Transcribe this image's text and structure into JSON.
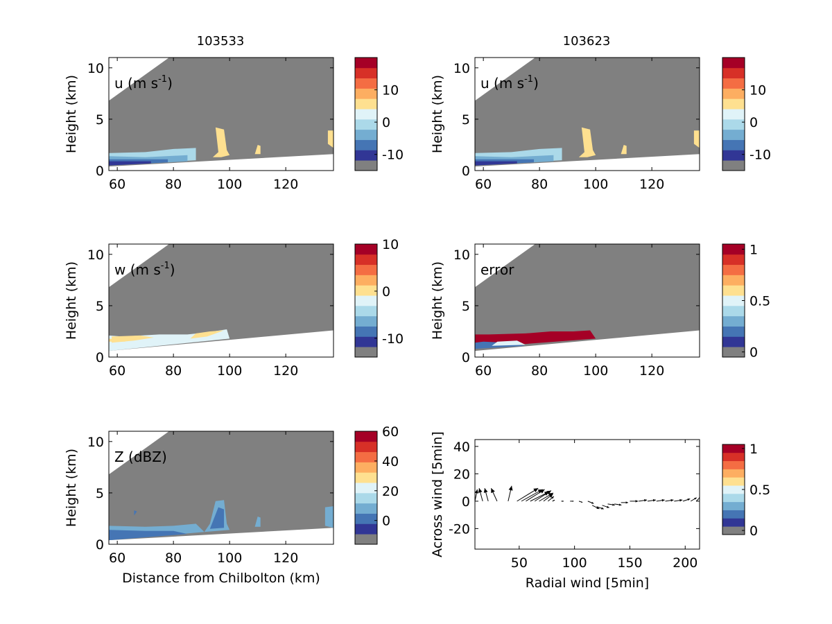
{
  "figure": {
    "titles": [
      "103533",
      "103623"
    ]
  },
  "colors": {
    "colormap": [
      "#808080",
      "#313695",
      "#4575b4",
      "#74add1",
      "#abd9e9",
      "#e0f3f8",
      "#fee090",
      "#fdae61",
      "#f46d43",
      "#d73027",
      "#a50026"
    ],
    "no_data_gray": "#808080",
    "axes_background": "#ffffff",
    "frame": "#000000"
  },
  "chart_data": [
    {
      "type": "heatmap",
      "panel": "top-left",
      "label": "u (m s-1)",
      "label_main": "u (m s",
      "label_sup": "-1",
      "label_close": ")",
      "ylabel": "Height (km)",
      "xlabel": "",
      "xlim": [
        57,
        137
      ],
      "ylim": [
        0,
        11
      ],
      "xticks": [
        "60",
        "80",
        "100",
        "120"
      ],
      "yticks": [
        "0",
        "5",
        "10"
      ],
      "colorbar_ticks": [
        "-10",
        "0",
        "10"
      ],
      "colorbar_range": [
        -15,
        20
      ]
    },
    {
      "type": "heatmap",
      "panel": "top-right",
      "label": "u (m s-1)",
      "label_main": "u (m s",
      "label_sup": "-1",
      "label_close": ")",
      "ylabel": "Height (km)",
      "xlabel": "",
      "xlim": [
        57,
        137
      ],
      "ylim": [
        0,
        11
      ],
      "xticks": [
        "60",
        "80",
        "100",
        "120"
      ],
      "yticks": [
        "0",
        "5",
        "10"
      ],
      "colorbar_ticks": [
        "-10",
        "0",
        "10"
      ],
      "colorbar_range": [
        -15,
        20
      ]
    },
    {
      "type": "heatmap",
      "panel": "middle-left",
      "label": "w (m s-1)",
      "label_main": "w (m s",
      "label_sup": "-1",
      "label_close": ")",
      "ylabel": "Height (km)",
      "xlabel": "",
      "xlim": [
        57,
        137
      ],
      "ylim": [
        0,
        11
      ],
      "xticks": [
        "60",
        "80",
        "100",
        "120"
      ],
      "yticks": [
        "0",
        "5",
        "10"
      ],
      "colorbar_ticks": [
        "-10",
        "0",
        "10"
      ],
      "colorbar_range": [
        -14,
        10
      ]
    },
    {
      "type": "heatmap",
      "panel": "middle-right",
      "label": "error",
      "label_main": "error",
      "label_sup": "",
      "label_close": "",
      "ylabel": "Height (km)",
      "xlabel": "",
      "xlim": [
        57,
        137
      ],
      "ylim": [
        0,
        11
      ],
      "xticks": [
        "60",
        "80",
        "100",
        "120"
      ],
      "yticks": [
        "0",
        "5",
        "10"
      ],
      "colorbar_ticks": [
        "0",
        "0.5",
        "1"
      ],
      "colorbar_range": [
        -0.05,
        1.05
      ]
    },
    {
      "type": "heatmap",
      "panel": "bottom-left",
      "label": "Z (dBZ)",
      "label_main": "Z (dBZ)",
      "label_sup": "",
      "label_close": "",
      "ylabel": "Height (km)",
      "xlabel": "Distance from Chilbolton (km)",
      "xlim": [
        57,
        137
      ],
      "ylim": [
        0,
        11
      ],
      "xticks": [
        "60",
        "80",
        "100",
        "120"
      ],
      "yticks": [
        "0",
        "5",
        "10"
      ],
      "colorbar_ticks": [
        "0",
        "20",
        "40",
        "60"
      ],
      "colorbar_range": [
        -16,
        60
      ]
    },
    {
      "type": "quiver",
      "panel": "bottom-right",
      "xlabel": "Radial wind [5min]",
      "ylabel": "Across wind [5min]",
      "xlim": [
        10,
        213
      ],
      "ylim": [
        -35,
        45
      ],
      "xticks": [
        "50",
        "100",
        "150",
        "200"
      ],
      "yticks": [
        "-20",
        "0",
        "20",
        "40"
      ],
      "colorbar_ticks": [
        "0",
        "0.5",
        "1"
      ],
      "colorbar_range": [
        -0.05,
        1.05
      ],
      "vectors": [
        {
          "x": 10,
          "y": 0,
          "u": 2,
          "v": 10
        },
        {
          "x": 17,
          "y": 0,
          "u": -3,
          "v": 11
        },
        {
          "x": 22,
          "y": 0,
          "u": -3,
          "v": 11
        },
        {
          "x": 30,
          "y": 0,
          "u": -5,
          "v": 11
        },
        {
          "x": 40,
          "y": 0,
          "u": 3,
          "v": 13
        },
        {
          "x": 48,
          "y": 0,
          "u": 18,
          "v": 11
        },
        {
          "x": 52,
          "y": 0,
          "u": 18,
          "v": 10
        },
        {
          "x": 56,
          "y": 0,
          "u": 16,
          "v": 10
        },
        {
          "x": 60,
          "y": 0,
          "u": 16,
          "v": 8
        },
        {
          "x": 64,
          "y": 0,
          "u": 14,
          "v": 9
        },
        {
          "x": 68,
          "y": 0,
          "u": 12,
          "v": 7
        },
        {
          "x": 72,
          "y": 0,
          "u": 8,
          "v": 6
        },
        {
          "x": 76,
          "y": 0,
          "u": 5,
          "v": 4
        },
        {
          "x": 80,
          "y": 0,
          "u": 2,
          "v": 1
        },
        {
          "x": 88,
          "y": 0,
          "u": 2,
          "v": 0
        },
        {
          "x": 96,
          "y": 0,
          "u": 3,
          "v": 0
        },
        {
          "x": 104,
          "y": 0,
          "u": 3,
          "v": -1
        },
        {
          "x": 112,
          "y": 0,
          "u": 5,
          "v": -2
        },
        {
          "x": 116,
          "y": -3,
          "u": 6,
          "v": -3
        },
        {
          "x": 120,
          "y": -4,
          "u": 6,
          "v": -2
        },
        {
          "x": 125,
          "y": -3,
          "u": 6,
          "v": -2
        },
        {
          "x": 130,
          "y": -2,
          "u": 6,
          "v": -1
        },
        {
          "x": 136,
          "y": -2,
          "u": 6,
          "v": -1
        },
        {
          "x": 142,
          "y": -1,
          "u": 6,
          "v": 0
        },
        {
          "x": 150,
          "y": 0,
          "u": 7,
          "v": 0
        },
        {
          "x": 158,
          "y": 0,
          "u": 7,
          "v": 1
        },
        {
          "x": 166,
          "y": 0,
          "u": 7,
          "v": 1
        },
        {
          "x": 174,
          "y": 0,
          "u": 7,
          "v": 1
        },
        {
          "x": 182,
          "y": 0,
          "u": 7,
          "v": 1
        },
        {
          "x": 190,
          "y": 0,
          "u": 7,
          "v": 1
        },
        {
          "x": 198,
          "y": 0,
          "u": 6,
          "v": 2
        },
        {
          "x": 205,
          "y": 0,
          "u": 5,
          "v": 3
        },
        {
          "x": 210,
          "y": 0,
          "u": 4,
          "v": 4
        }
      ]
    }
  ]
}
